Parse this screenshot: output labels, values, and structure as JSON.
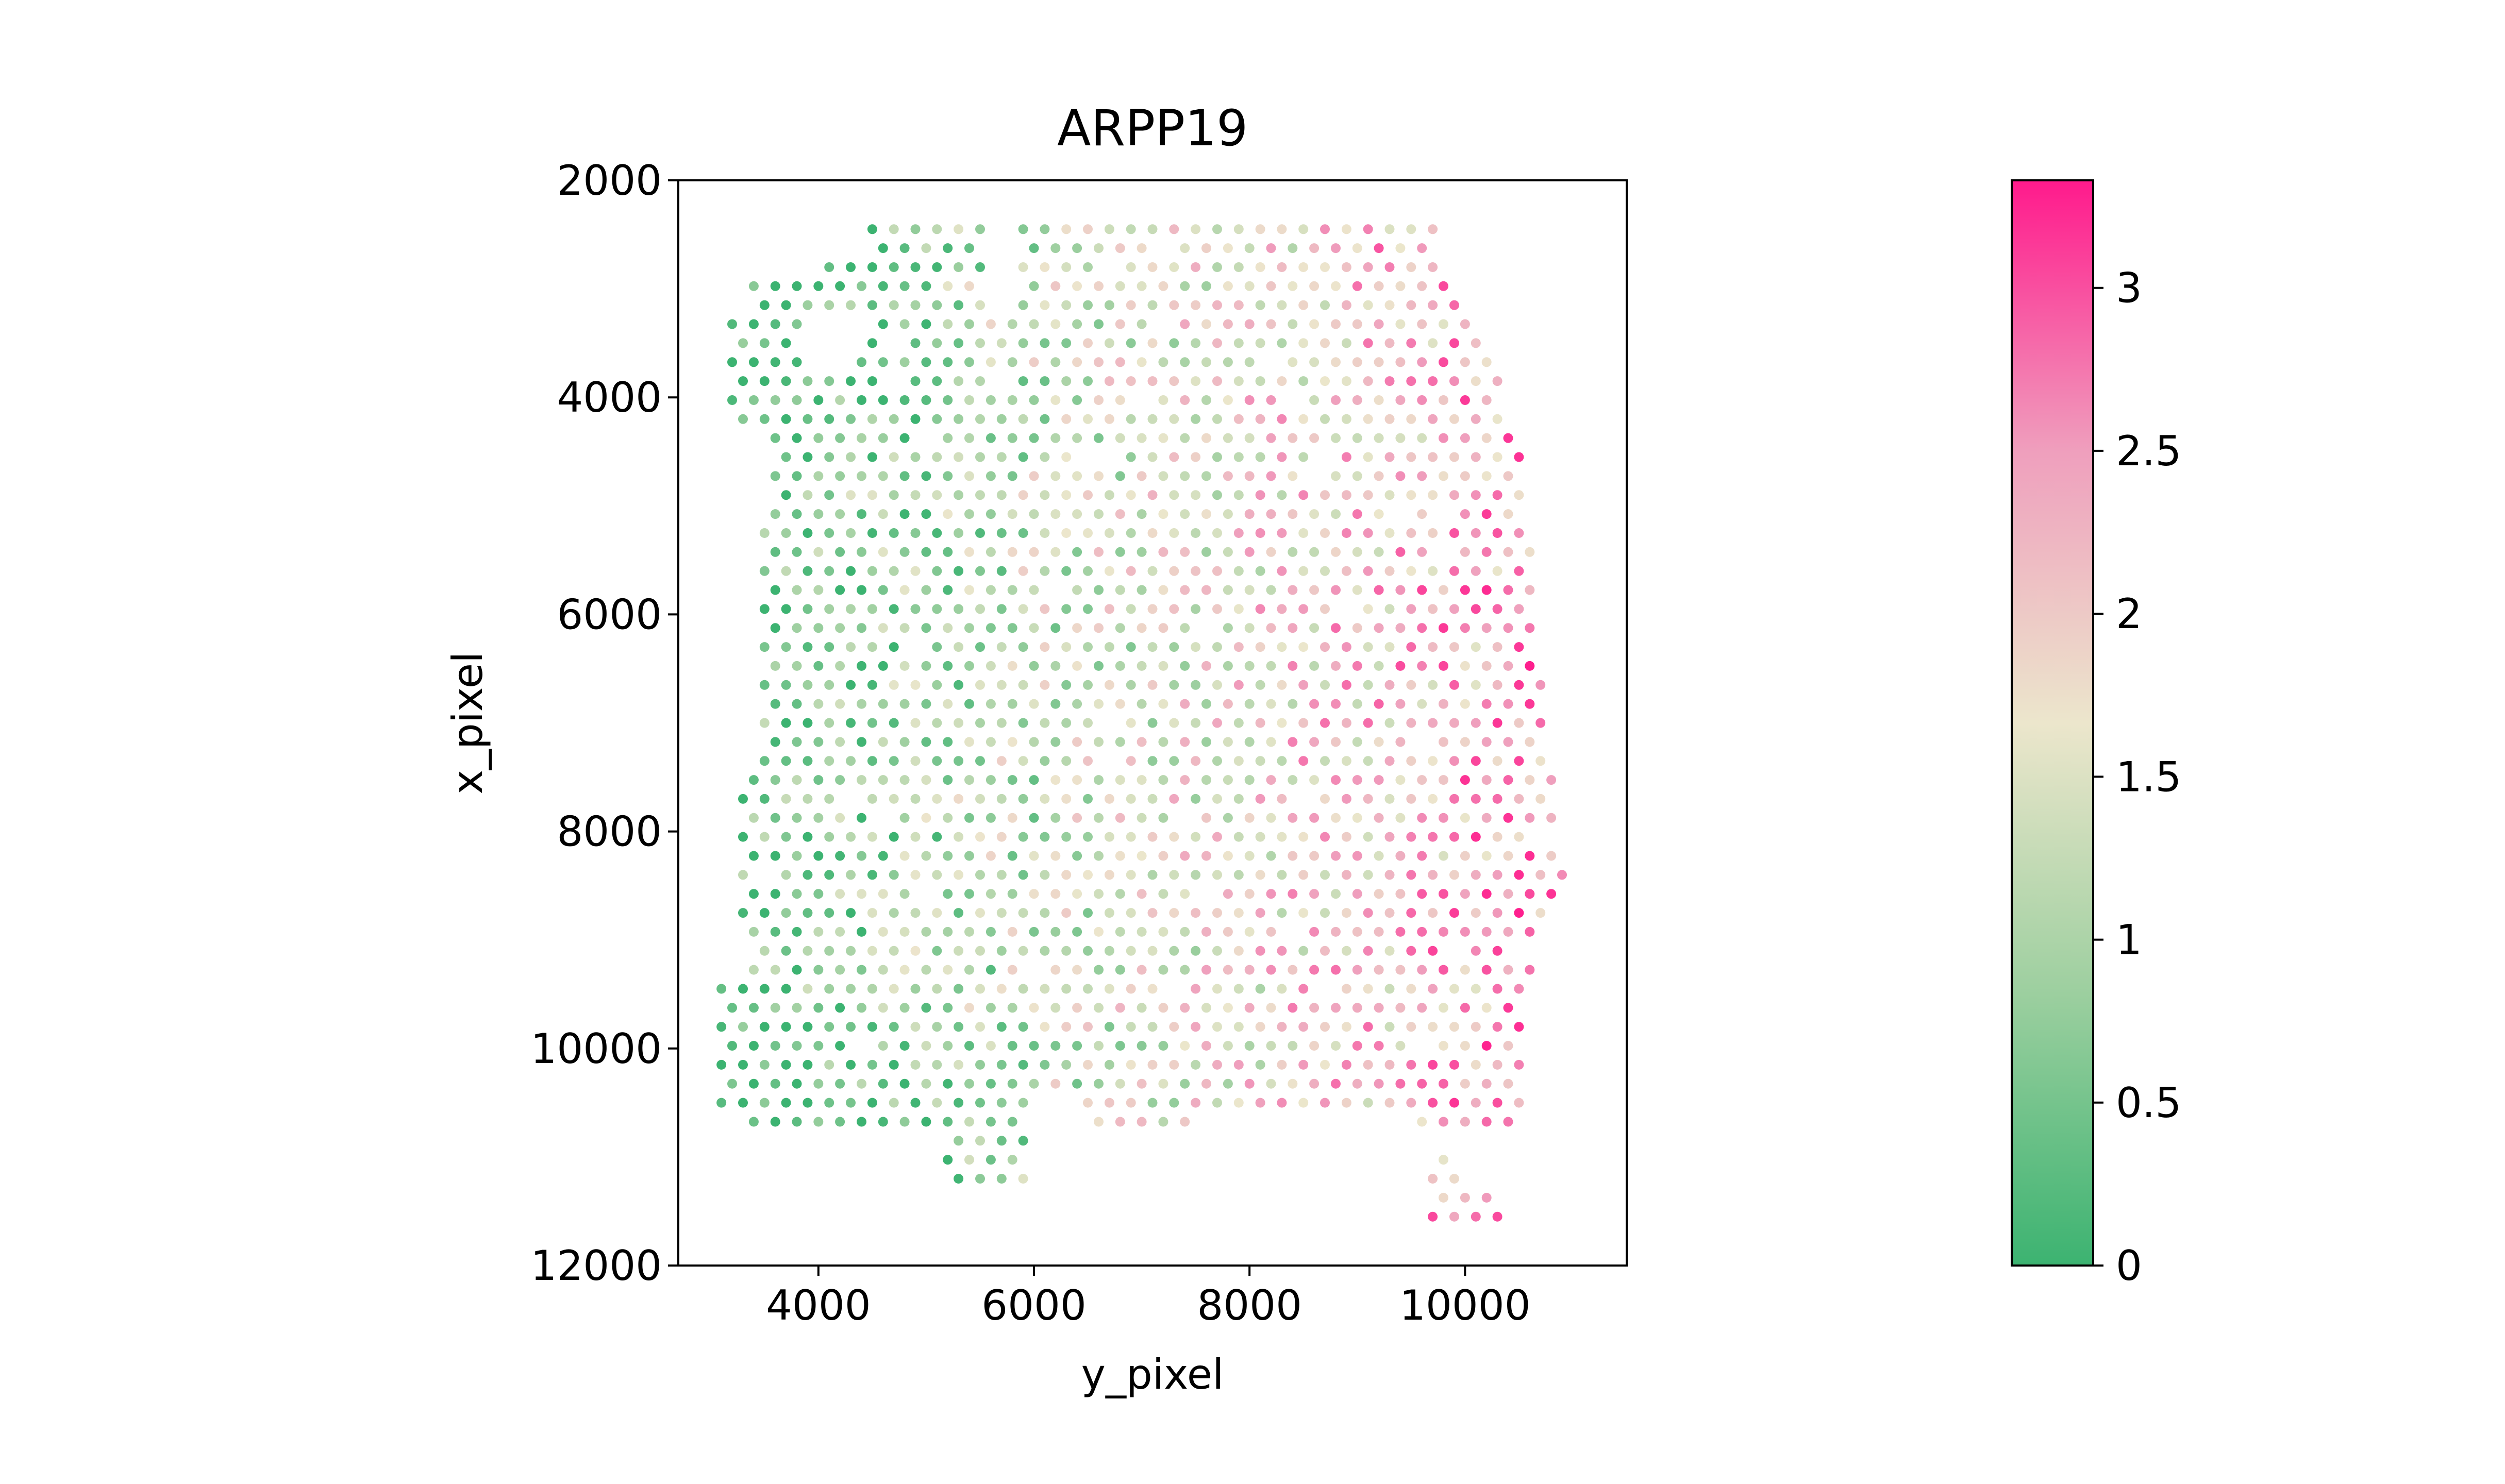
{
  "chart_data": {
    "type": "scatter",
    "title": "ARPP19",
    "xlabel": "y_pixel",
    "ylabel": "x_pixel",
    "xlim": [
      2700,
      11500
    ],
    "ylim": [
      12000,
      2000
    ],
    "y_inverted": true,
    "grid": false,
    "xticks": [
      4000,
      6000,
      8000,
      10000
    ],
    "xtick_labels": [
      "4000",
      "6000",
      "8000",
      "10000"
    ],
    "yticks": [
      2000,
      4000,
      6000,
      8000,
      10000,
      12000
    ],
    "ytick_labels": [
      "2000",
      "4000",
      "6000",
      "8000",
      "10000",
      "12000"
    ],
    "colorbar": {
      "min": 0,
      "max": 3.33,
      "ticks": [
        0,
        0.5,
        1,
        1.5,
        2,
        2.5,
        3
      ],
      "tick_labels": [
        "0",
        "0.5",
        "1",
        "1.5",
        "2",
        "2.5",
        "3"
      ],
      "colors": [
        "#3cb371",
        "#9ccf9f",
        "#ece6cc",
        "#ef9fbd",
        "#ff1a8c"
      ],
      "placement": "right"
    },
    "spot_grid": {
      "y_min": 3100,
      "y_max": 11050,
      "y_step": 200,
      "x_min": 2450,
      "x_max": 11600,
      "x_step": 175
    }
  }
}
